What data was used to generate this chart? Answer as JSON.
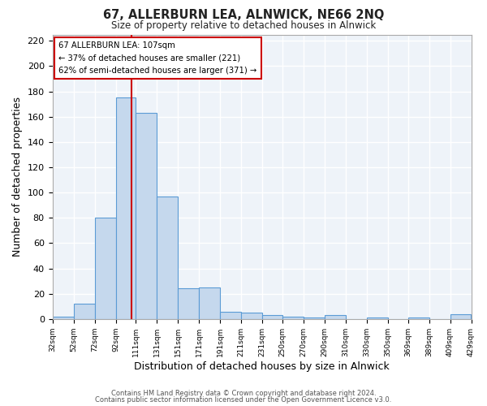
{
  "title": "67, ALLERBURN LEA, ALNWICK, NE66 2NQ",
  "subtitle": "Size of property relative to detached houses in Alnwick",
  "xlabel": "Distribution of detached houses by size in Alnwick",
  "ylabel": "Number of detached properties",
  "bar_color": "#c5d8ed",
  "bar_edge_color": "#5b9bd5",
  "bg_color": "#eef3f9",
  "grid_color": "#ffffff",
  "vline_x": 107,
  "vline_color": "#cc0000",
  "annotation_title": "67 ALLERBURN LEA: 107sqm",
  "annotation_line1": "← 37% of detached houses are smaller (221)",
  "annotation_line2": "62% of semi-detached houses are larger (371) →",
  "annotation_box_color": "#ffffff",
  "annotation_box_edge": "#cc0000",
  "bin_edges": [
    32,
    52,
    72,
    92,
    111,
    131,
    151,
    171,
    191,
    211,
    231,
    250,
    270,
    290,
    310,
    330,
    350,
    369,
    389,
    409,
    429
  ],
  "bin_heights": [
    2,
    12,
    80,
    175,
    163,
    97,
    24,
    25,
    6,
    5,
    3,
    2,
    1,
    3,
    0,
    1,
    0,
    1,
    0,
    4
  ],
  "ylim": [
    0,
    225
  ],
  "yticks": [
    0,
    20,
    40,
    60,
    80,
    100,
    120,
    140,
    160,
    180,
    200,
    220
  ],
  "footer_line1": "Contains HM Land Registry data © Crown copyright and database right 2024.",
  "footer_line2": "Contains public sector information licensed under the Open Government Licence v3.0."
}
